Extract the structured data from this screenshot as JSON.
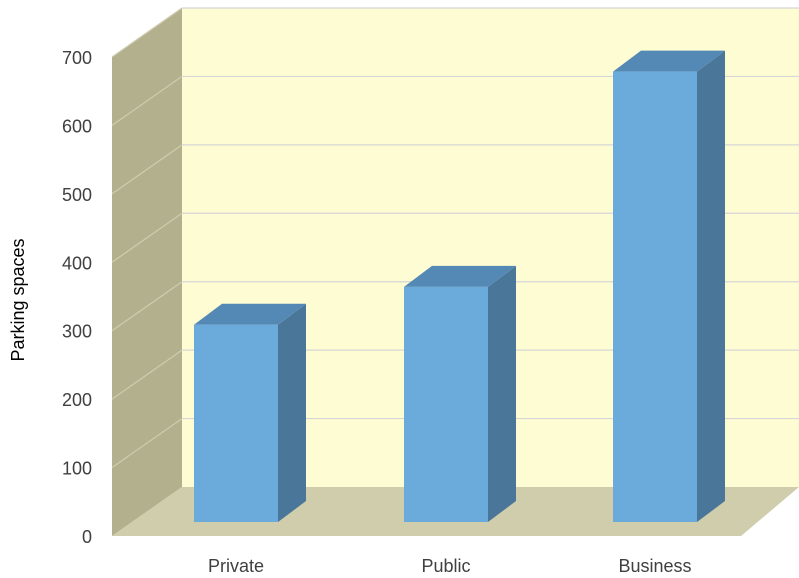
{
  "chart_data": {
    "type": "bar",
    "categories": [
      "Private",
      "Public",
      "Business"
    ],
    "values": [
      297,
      354,
      678
    ],
    "title": "",
    "xlabel": "",
    "ylabel": "Parking spaces",
    "ylim": [
      0,
      700
    ],
    "yticks": [
      "0",
      "100",
      "200",
      "300",
      "400",
      "500",
      "600",
      "700"
    ],
    "grid": true,
    "legend": "none"
  },
  "colors": {
    "bar_front": "#6aabdc",
    "bar_top": "#5489b6",
    "bar_side": "#4a7699",
    "back_wall": "#fdfcd2",
    "side_wall": "#b3b08e",
    "floor": "#cfcdab",
    "gridline": "#d6d6d6"
  }
}
